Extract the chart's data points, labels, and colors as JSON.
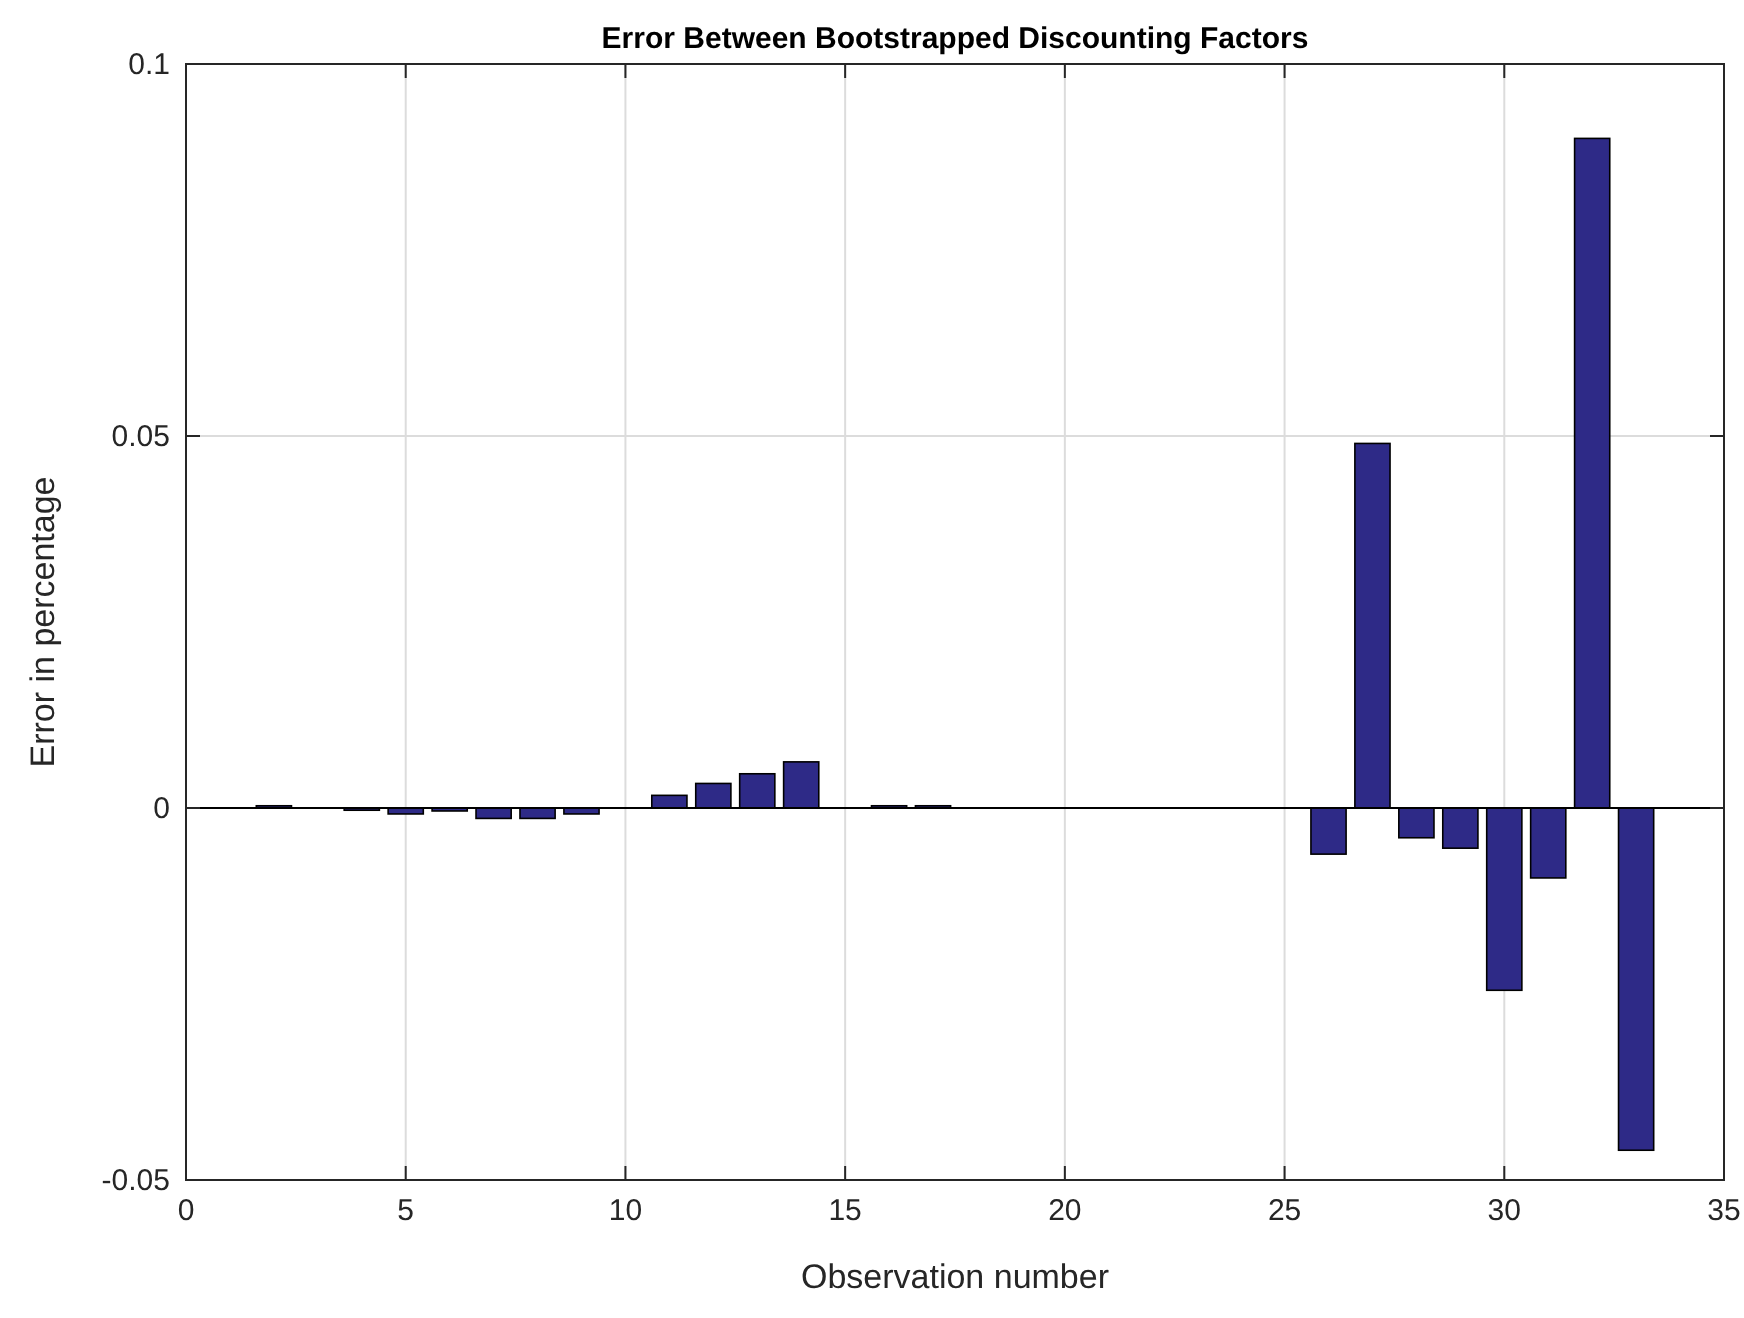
{
  "chart_data": {
    "type": "bar",
    "title": "Error Between Bootstrapped Discounting Factors",
    "xlabel": "Observation number",
    "ylabel": "Error in percentage",
    "x": [
      1,
      2,
      3,
      4,
      5,
      6,
      7,
      8,
      9,
      10,
      11,
      12,
      13,
      14,
      15,
      16,
      17,
      18,
      19,
      20,
      21,
      22,
      23,
      24,
      25,
      26,
      27,
      28,
      29,
      30,
      31,
      32,
      33
    ],
    "values": [
      0,
      0.0003,
      0,
      -0.0003,
      -0.0008,
      -0.0004,
      -0.0014,
      -0.0014,
      -0.0008,
      0,
      0.0017,
      0.0033,
      0.0046,
      0.0062,
      0,
      0.0003,
      0.0003,
      0,
      0,
      0,
      0,
      0,
      0,
      0,
      0,
      -0.0062,
      0.049,
      -0.004,
      -0.0054,
      -0.0245,
      -0.0094,
      0.09,
      -0.046
    ],
    "color": "#2e2a87",
    "xlim": [
      0,
      35
    ],
    "xticks": [
      0,
      5,
      10,
      15,
      20,
      25,
      30,
      35
    ],
    "ylim": [
      -0.05,
      0.1
    ],
    "yticks": [
      -0.05,
      0,
      0.05,
      0.1
    ],
    "grid": true
  }
}
